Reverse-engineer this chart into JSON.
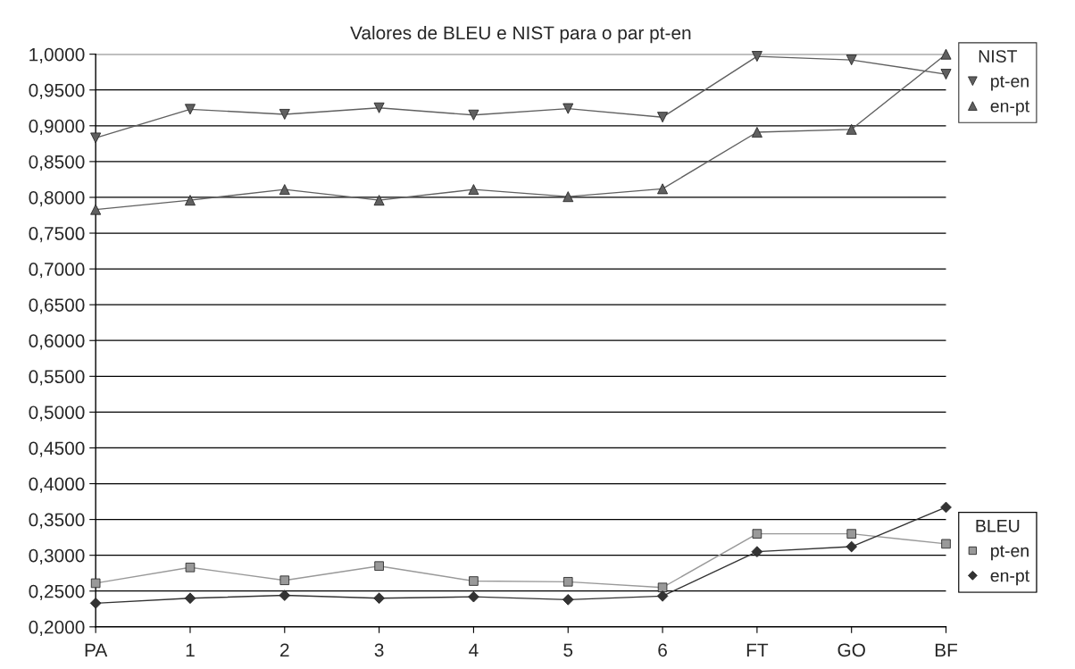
{
  "chart_data": {
    "type": "line",
    "title": "Valores de BLEU e NIST para o par pt-en",
    "categories": [
      "PA",
      "1",
      "2",
      "3",
      "4",
      "5",
      "6",
      "FT",
      "GO",
      "BF"
    ],
    "series": [
      {
        "name": "pt-en",
        "color": "#606060",
        "marker": "triangle_down",
        "values": [
          0.883,
          0.923,
          0.916,
          0.925,
          0.915,
          0.924,
          0.912,
          0.997,
          0.992,
          0.972
        ]
      },
      {
        "name": "en-pt",
        "color": "#606060",
        "marker": "triangle",
        "values": [
          0.783,
          0.796,
          0.811,
          0.796,
          0.811,
          0.801,
          0.812,
          0.891,
          0.895,
          1.0
        ]
      },
      {
        "name": "pt-en",
        "color": "#999999",
        "marker": "square",
        "values": [
          0.261,
          0.283,
          0.265,
          0.285,
          0.264,
          0.263,
          0.255,
          0.33,
          0.33,
          0.316
        ]
      },
      {
        "name": "en-pt",
        "color": "#333333",
        "marker": "diamond",
        "values": [
          0.233,
          0.24,
          0.244,
          0.24,
          0.242,
          0.238,
          0.243,
          0.305,
          0.312,
          0.367
        ]
      }
    ],
    "legend_title": [
      "NIST",
      "BLEU"
    ],
    "legend": "right",
    "ylim": [
      0.2,
      1.0
    ],
    "yticks": [
      {
        "value": 0.2,
        "label": "0,2000"
      },
      {
        "value": 0.25,
        "label": "0,2500"
      },
      {
        "value": 0.3,
        "label": "0,3000"
      },
      {
        "value": 0.35,
        "label": "0,3500"
      },
      {
        "value": 0.4,
        "label": "0,4000"
      },
      {
        "value": 0.45,
        "label": "0,4500"
      },
      {
        "value": 0.5,
        "label": "0,5000"
      },
      {
        "value": 0.55,
        "label": "0,5500"
      },
      {
        "value": 0.6,
        "label": "0,6000"
      },
      {
        "value": 0.65,
        "label": "0,6500"
      },
      {
        "value": 0.7,
        "label": "0,7000"
      },
      {
        "value": 0.75,
        "label": "0,7500"
      },
      {
        "value": 0.8,
        "label": "0,8000"
      },
      {
        "value": 0.85,
        "label": "0,8500"
      },
      {
        "value": 0.9,
        "label": "0,9000"
      },
      {
        "value": 0.95,
        "label": "0,9500"
      },
      {
        "value": 1.0,
        "label": "1,0000"
      }
    ],
    "grid": "y",
    "line_style": "solid"
  }
}
